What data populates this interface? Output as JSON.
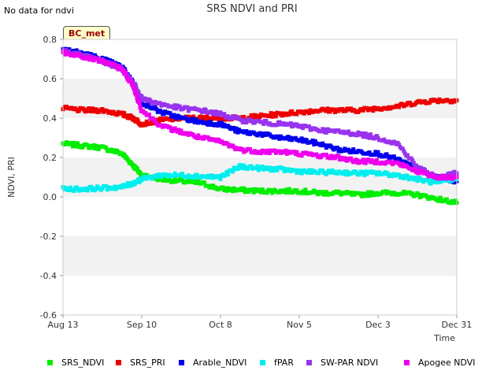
{
  "corner_note": "No data for ndvi",
  "station_tag": "BC_met",
  "chart_data": {
    "type": "scatter",
    "title": "SRS NDVI and PRI",
    "xlabel": "Time",
    "ylabel": "NDVI, PRI",
    "x_tick_labels": [
      "Aug 13",
      "Sep 10",
      "Oct 8",
      "Nov 5",
      "Dec 3",
      "Dec 31"
    ],
    "x_range": [
      "2022-08-13",
      "2022-12-31"
    ],
    "ylim": [
      -0.6,
      0.8
    ],
    "y_ticks": [
      -0.6,
      -0.4,
      -0.2,
      0.0,
      0.2,
      0.4,
      0.6,
      0.8
    ],
    "y_tick_labels": [
      "-0.6",
      "-0.4",
      "-0.2",
      "0.0",
      "0.2",
      "0.4",
      "0.6",
      "0.8"
    ],
    "grid": "alternating horizontal bands",
    "legend_position": "bottom",
    "series": [
      {
        "name": "SRS_NDVI",
        "color": "#00ee00",
        "x": [
          "Aug 13",
          "Aug 20",
          "Aug 27",
          "Sep 3",
          "Sep 7",
          "Sep 10",
          "Sep 17",
          "Sep 24",
          "Oct 1",
          "Oct 8",
          "Oct 15",
          "Oct 22",
          "Oct 29",
          "Nov 5",
          "Nov 12",
          "Nov 19",
          "Nov 26",
          "Dec 3",
          "Dec 10",
          "Dec 17",
          "Dec 24",
          "Dec 31"
        ],
        "y": [
          0.27,
          0.26,
          0.25,
          0.22,
          0.16,
          0.11,
          0.09,
          0.08,
          0.07,
          0.04,
          0.035,
          0.03,
          0.03,
          0.03,
          0.02,
          0.02,
          0.01,
          0.02,
          0.02,
          0.01,
          -0.01,
          -0.03
        ]
      },
      {
        "name": "SRS_PRI",
        "color": "#ee0000",
        "x": [
          "Aug 13",
          "Aug 20",
          "Aug 27",
          "Sep 3",
          "Sep 7",
          "Sep 10",
          "Sep 17",
          "Sep 24",
          "Oct 1",
          "Oct 8",
          "Oct 15",
          "Oct 22",
          "Oct 29",
          "Nov 5",
          "Nov 12",
          "Nov 19",
          "Nov 26",
          "Dec 3",
          "Dec 10",
          "Dec 17",
          "Dec 24",
          "Dec 31"
        ],
        "y": [
          0.45,
          0.44,
          0.44,
          0.42,
          0.4,
          0.37,
          0.39,
          0.4,
          0.4,
          0.4,
          0.4,
          0.41,
          0.42,
          0.43,
          0.44,
          0.44,
          0.44,
          0.45,
          0.46,
          0.48,
          0.49,
          0.49
        ]
      },
      {
        "name": "Arable_NDVI",
        "color": "#0000ee",
        "x": [
          "Aug 13",
          "Aug 20",
          "Aug 27",
          "Sep 3",
          "Sep 7",
          "Sep 10",
          "Sep 17",
          "Sep 24",
          "Oct 1",
          "Oct 8",
          "Oct 15",
          "Oct 22",
          "Oct 29",
          "Nov 5",
          "Nov 12",
          "Nov 19",
          "Nov 26",
          "Dec 3",
          "Dec 10",
          "Dec 17",
          "Dec 24",
          "Dec 31"
        ],
        "y": [
          0.75,
          0.73,
          0.7,
          0.66,
          0.58,
          0.48,
          0.43,
          0.4,
          0.38,
          0.37,
          0.33,
          0.32,
          0.3,
          0.29,
          0.27,
          0.24,
          0.23,
          0.22,
          0.19,
          0.14,
          0.1,
          0.08
        ]
      },
      {
        "name": "fPAR",
        "color": "#00eeee",
        "x": [
          "Aug 13",
          "Aug 20",
          "Aug 27",
          "Sep 3",
          "Sep 7",
          "Sep 10",
          "Sep 17",
          "Sep 24",
          "Oct 1",
          "Oct 8",
          "Oct 15",
          "Oct 22",
          "Oct 29",
          "Nov 5",
          "Nov 12",
          "Nov 19",
          "Nov 26",
          "Dec 3",
          "Dec 10",
          "Dec 17",
          "Dec 24",
          "Dec 31"
        ],
        "y": [
          0.04,
          0.04,
          0.045,
          0.05,
          0.07,
          0.09,
          0.11,
          0.11,
          0.105,
          0.1,
          0.155,
          0.145,
          0.14,
          0.13,
          0.125,
          0.125,
          0.12,
          0.12,
          0.11,
          0.09,
          0.07,
          0.09
        ]
      },
      {
        "name": "SW-PAR NDVI",
        "color": "#9933ee",
        "x": [
          "Aug 13",
          "Aug 20",
          "Aug 27",
          "Sep 3",
          "Sep 7",
          "Sep 10",
          "Sep 17",
          "Sep 24",
          "Oct 1",
          "Oct 8",
          "Oct 15",
          "Oct 22",
          "Oct 29",
          "Nov 5",
          "Nov 12",
          "Nov 19",
          "Nov 26",
          "Dec 3",
          "Dec 10",
          "Dec 17",
          "Dec 24",
          "Dec 31"
        ],
        "y": [
          0.74,
          0.72,
          0.69,
          0.65,
          0.58,
          0.5,
          0.47,
          0.45,
          0.44,
          0.42,
          0.39,
          0.38,
          0.37,
          0.36,
          0.34,
          0.33,
          0.32,
          0.3,
          0.27,
          0.15,
          0.1,
          0.12
        ]
      },
      {
        "name": "Apogee NDVI",
        "color": "#ee00ee",
        "x": [
          "Aug 13",
          "Aug 20",
          "Aug 27",
          "Sep 3",
          "Sep 7",
          "Sep 10",
          "Sep 17",
          "Sep 24",
          "Oct 1",
          "Oct 8",
          "Oct 15",
          "Oct 22",
          "Oct 29",
          "Nov 5",
          "Nov 12",
          "Nov 19",
          "Nov 26",
          "Dec 3",
          "Dec 10",
          "Dec 17",
          "Dec 24",
          "Dec 31"
        ],
        "y": [
          0.73,
          0.71,
          0.69,
          0.65,
          0.56,
          0.44,
          0.36,
          0.33,
          0.3,
          0.28,
          0.24,
          0.23,
          0.23,
          0.22,
          0.21,
          0.2,
          0.18,
          0.18,
          0.17,
          0.13,
          0.1,
          0.1
        ]
      }
    ]
  }
}
